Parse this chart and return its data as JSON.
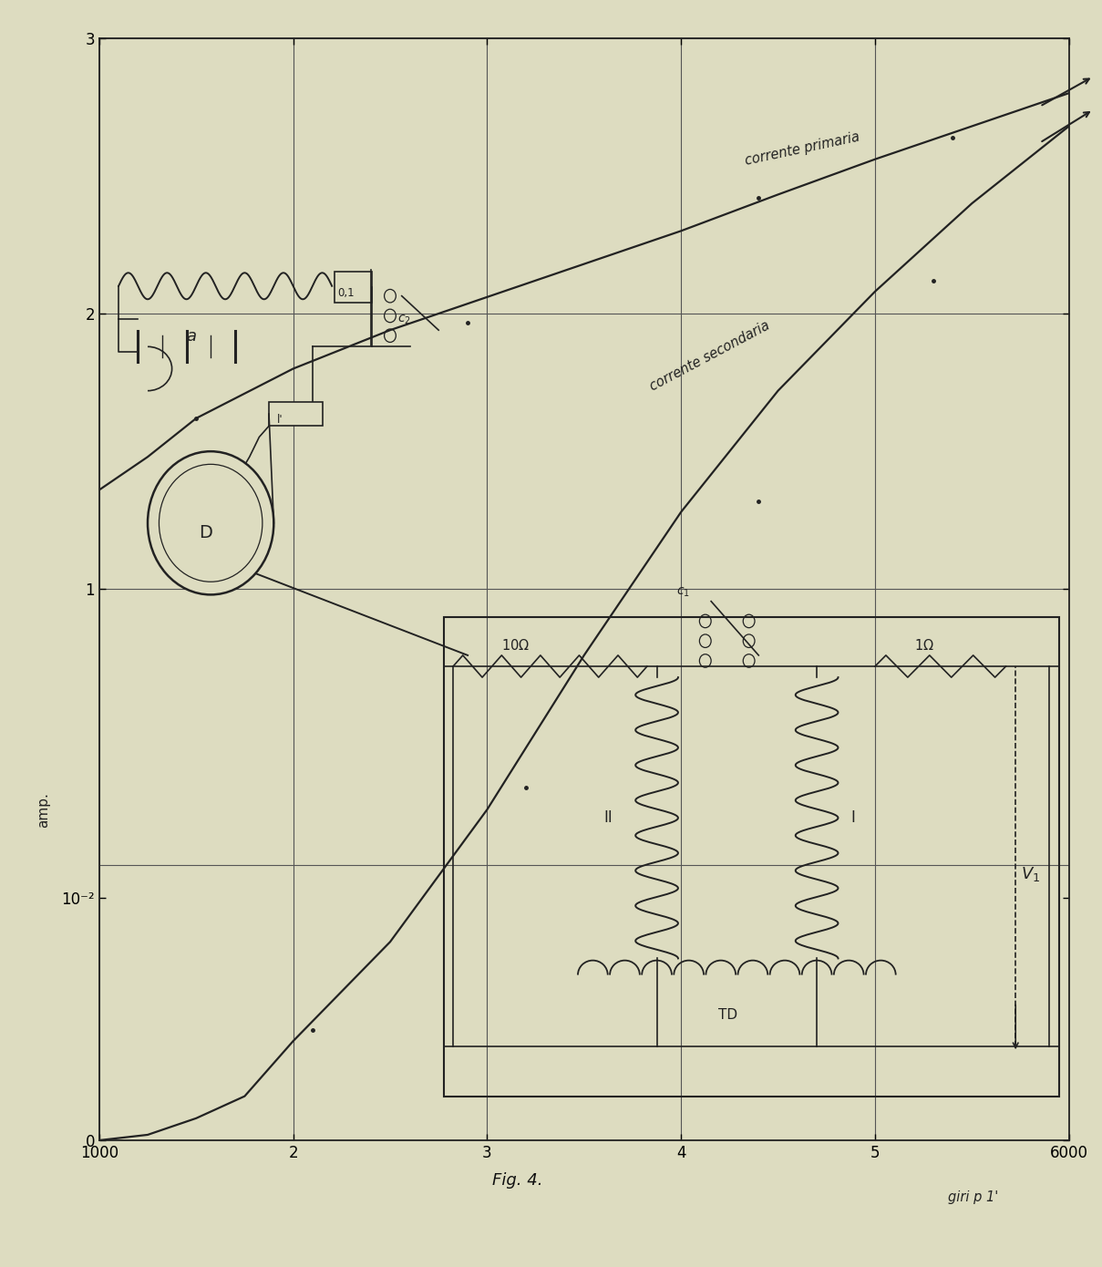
{
  "background_color": "#dddcc0",
  "grid_color": "#555555",
  "fig_caption": "Fig. 4.",
  "ylabel": "amp.",
  "xlabel_units": "giri p 1'",
  "ytick_labels": [
    "0",
    "10⁻²",
    "1",
    "2",
    "3"
  ],
  "ytick_positions": [
    0.0,
    0.22,
    0.5,
    0.75,
    1.0
  ],
  "xtick_labels": [
    "1000",
    "2",
    "3",
    "4",
    "5",
    "6000"
  ],
  "xtick_positions": [
    0.0,
    0.2,
    0.4,
    0.6,
    0.8,
    1.0
  ],
  "curve_primary_label": "corrente primaria",
  "curve_secondary_label": "corrente secondaria",
  "primary_curve_x": [
    0.0,
    0.05,
    0.1,
    0.2,
    0.3,
    0.4,
    0.5,
    0.6,
    0.7,
    0.8,
    0.9,
    1.0
  ],
  "primary_curve_y": [
    0.59,
    0.62,
    0.655,
    0.7,
    0.735,
    0.765,
    0.795,
    0.825,
    0.858,
    0.89,
    0.92,
    0.95
  ],
  "secondary_curve_x": [
    0.0,
    0.05,
    0.1,
    0.15,
    0.2,
    0.3,
    0.4,
    0.5,
    0.6,
    0.7,
    0.8,
    0.9,
    1.0
  ],
  "secondary_curve_y": [
    0.0,
    0.005,
    0.02,
    0.04,
    0.09,
    0.18,
    0.3,
    0.44,
    0.57,
    0.68,
    0.77,
    0.85,
    0.92
  ],
  "line_color": "#111111",
  "text_color": "#111111",
  "lc": "#222222"
}
